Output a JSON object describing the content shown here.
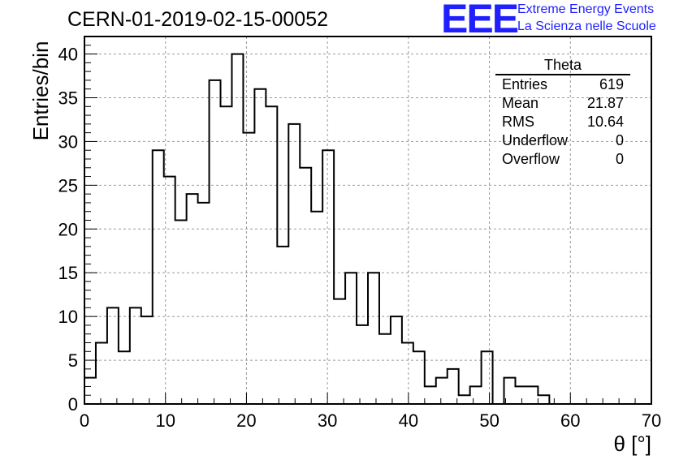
{
  "chart_data": {
    "type": "bar",
    "title": "CERN-01-2019-02-15-00052",
    "xlabel": "θ [°]",
    "ylabel": "Entries/bin",
    "xlim": [
      0,
      70
    ],
    "ylim": [
      0,
      42
    ],
    "bin_width": 1.4,
    "grid": true,
    "values": [
      3,
      7,
      11,
      6,
      11,
      10,
      29,
      26,
      21,
      24,
      23,
      37,
      34,
      40,
      31,
      36,
      34,
      18,
      32,
      27,
      22,
      29,
      12,
      15,
      9,
      15,
      8,
      10,
      7,
      6,
      2,
      3,
      4,
      1,
      2,
      6,
      0,
      3,
      2,
      2,
      1,
      0,
      0,
      0,
      0,
      0,
      0,
      0,
      0,
      0
    ],
    "x_ticks": [
      0,
      10,
      20,
      30,
      40,
      50,
      60,
      70
    ],
    "y_ticks": [
      0,
      5,
      10,
      15,
      20,
      25,
      30,
      35,
      40
    ],
    "stats": {
      "title": "Theta",
      "rows": [
        {
          "label": "Entries",
          "value": "619"
        },
        {
          "label": "Mean",
          "value": "21.87"
        },
        {
          "label": "RMS",
          "value": "10.64"
        },
        {
          "label": "Underflow",
          "value": "0"
        },
        {
          "label": "Overflow",
          "value": "0"
        }
      ]
    }
  },
  "branding": {
    "logo_text": "EEE",
    "line1": "Extreme Energy Events",
    "line2": "La Scienza nelle Scuole",
    "color": "#1f1fff"
  }
}
